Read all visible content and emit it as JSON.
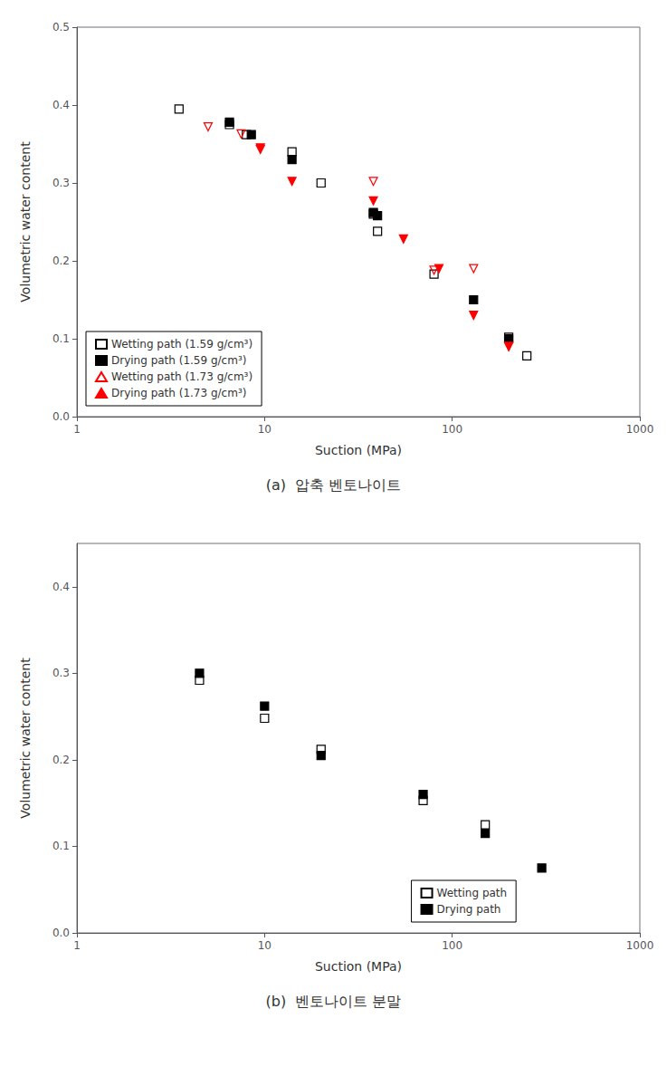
{
  "chart_data": [
    {
      "type": "scatter",
      "title": "(a)  압축 벤토나이트",
      "xlabel": "Suction (MPa)",
      "ylabel": "Volumetric water content",
      "log": "x",
      "xlim": [
        1,
        1000
      ],
      "xticks": [
        1,
        10,
        100,
        1000
      ],
      "ylim": [
        0.0,
        0.5
      ],
      "yticks": [
        {
          "value": 0.0,
          "label": "0.0"
        },
        0.1,
        0.2,
        0.3,
        0.4,
        0.5
      ],
      "grid": false,
      "legend": "lower left",
      "series": [
        {
          "name": "Wetting path (1.59 g/cm³)",
          "color": "black",
          "marker": "square-open",
          "x": [
            3.5,
            6.5,
            8.0,
            14.0,
            20.0,
            38.0,
            40.0,
            80.0,
            200.0,
            250.0
          ],
          "values": [
            0.395,
            0.375,
            0.362,
            0.34,
            0.3,
            0.26,
            0.238,
            0.183,
            0.102,
            0.078
          ]
        },
        {
          "name": "Drying path (1.59 g/cm³)",
          "color": "black",
          "marker": "square",
          "x": [
            6.5,
            8.5,
            14.0,
            38.0,
            40.0,
            130.0,
            200.0
          ],
          "values": [
            0.378,
            0.362,
            0.33,
            0.262,
            0.258,
            0.15,
            0.1
          ]
        },
        {
          "name": "Wetting path (1.73 g/cm³)",
          "color": "red",
          "marker": "triangle-down-open",
          "x": [
            5.0,
            7.5,
            9.5,
            38.0,
            80.0,
            130.0,
            200.0
          ],
          "values": [
            0.372,
            0.363,
            0.343,
            0.302,
            0.188,
            0.19,
            0.09
          ]
        },
        {
          "name": "Drying path (1.73 g/cm³)",
          "color": "red",
          "marker": "triangle-down",
          "x": [
            9.5,
            14.0,
            38.0,
            55.0,
            85.0,
            130.0,
            200.0
          ],
          "values": [
            0.345,
            0.302,
            0.277,
            0.228,
            0.19,
            0.13,
            0.09
          ]
        }
      ]
    },
    {
      "type": "scatter",
      "title": "(b)  벤토나이트 분말",
      "xlabel": "Suction (MPa)",
      "ylabel": "Volumetric water content",
      "log": "x",
      "xlim": [
        1,
        1000
      ],
      "xticks": [
        1,
        10,
        100,
        1000
      ],
      "ylim": [
        0.0,
        0.45
      ],
      "yticks": [
        {
          "value": 0.0,
          "label": "0.0"
        },
        0.1,
        0.2,
        0.3,
        0.4
      ],
      "grid": false,
      "legend": "lower right",
      "series": [
        {
          "name": "Wetting path",
          "color": "black",
          "marker": "square-open",
          "x": [
            4.5,
            10.0,
            20.0,
            70.0,
            150.0
          ],
          "values": [
            0.292,
            0.248,
            0.212,
            0.153,
            0.125
          ]
        },
        {
          "name": "Drying path",
          "color": "black",
          "marker": "square",
          "x": [
            4.5,
            10.0,
            20.0,
            70.0,
            150.0,
            300.0
          ],
          "values": [
            0.3,
            0.262,
            0.205,
            0.16,
            0.115,
            0.075
          ]
        }
      ]
    }
  ]
}
